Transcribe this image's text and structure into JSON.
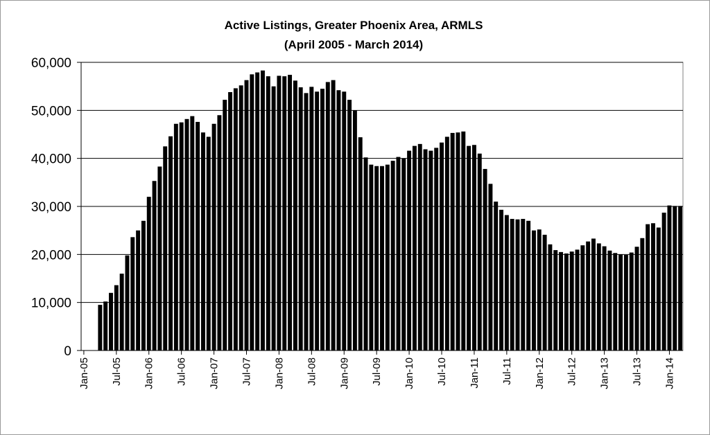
{
  "chart_data": {
    "type": "bar",
    "title": "Active Listings, Greater Phoenix Area, ARMLS",
    "subtitle": "(April 2005 - March 2014)",
    "color": "#000000",
    "grid": true,
    "ylim": [
      0,
      60000
    ],
    "yticks": [
      0,
      {
        "value": 10000,
        "label": "10,000"
      },
      {
        "value": 20000,
        "label": "20,000"
      },
      {
        "value": 30000,
        "label": "30,000"
      },
      {
        "value": 40000,
        "label": "40,000"
      },
      {
        "value": 50000,
        "label": "50,000"
      },
      {
        "value": 60000,
        "label": "60,000"
      }
    ],
    "categories": [
      "Jan-05",
      null,
      null,
      null,
      null,
      null,
      "Jul-05",
      null,
      null,
      null,
      null,
      null,
      "Jan-06",
      null,
      null,
      null,
      null,
      null,
      "Jul-06",
      null,
      null,
      null,
      null,
      null,
      "Jan-07",
      null,
      null,
      null,
      null,
      null,
      "Jul-07",
      null,
      null,
      null,
      null,
      null,
      "Jan-08",
      null,
      null,
      null,
      null,
      null,
      "Jul-08",
      null,
      null,
      null,
      null,
      null,
      "Jan-09",
      null,
      null,
      null,
      null,
      null,
      "Jul-09",
      null,
      null,
      null,
      null,
      null,
      "Jan-10",
      null,
      null,
      null,
      null,
      null,
      "Jul-10",
      null,
      null,
      null,
      null,
      null,
      "Jan-11",
      null,
      null,
      null,
      null,
      null,
      "Jul-11",
      null,
      null,
      null,
      null,
      null,
      "Jan-12",
      null,
      null,
      null,
      null,
      null,
      "Jul-12",
      null,
      null,
      null,
      null,
      null,
      "Jan-13",
      null,
      null,
      null,
      null,
      null,
      "Jul-13",
      null,
      null,
      null,
      null,
      null,
      "Jan-14",
      null,
      null
    ],
    "values": [
      null,
      null,
      null,
      9500,
      10200,
      12000,
      13600,
      16000,
      19800,
      23600,
      25000,
      27000,
      32000,
      35300,
      38300,
      42500,
      44600,
      47200,
      47500,
      48200,
      48800,
      47600,
      45400,
      44500,
      47200,
      49000,
      52200,
      53800,
      54600,
      55200,
      56300,
      57500,
      57900,
      58300,
      57100,
      55000,
      57200,
      57100,
      57400,
      56200,
      54800,
      53600,
      54900,
      53900,
      54500,
      55900,
      56300,
      54200,
      53900,
      52200,
      50000,
      44400,
      40200,
      38700,
      38400,
      38400,
      38700,
      39500,
      40300,
      40000,
      41600,
      42600,
      43000,
      41900,
      41600,
      42200,
      43300,
      44500,
      45300,
      45400,
      45600,
      42600,
      42800,
      41000,
      37800,
      34700,
      31000,
      29300,
      28200,
      27400,
      27300,
      27400,
      27000,
      25000,
      25200,
      24100,
      22100,
      20900,
      20500,
      20200,
      20600,
      21000,
      21900,
      22700,
      23300,
      22300,
      21700,
      20800,
      20300,
      20000,
      19900,
      20400,
      21600,
      23400,
      26300,
      26500,
      25600,
      28700,
      30200,
      30100,
      30100
    ]
  }
}
